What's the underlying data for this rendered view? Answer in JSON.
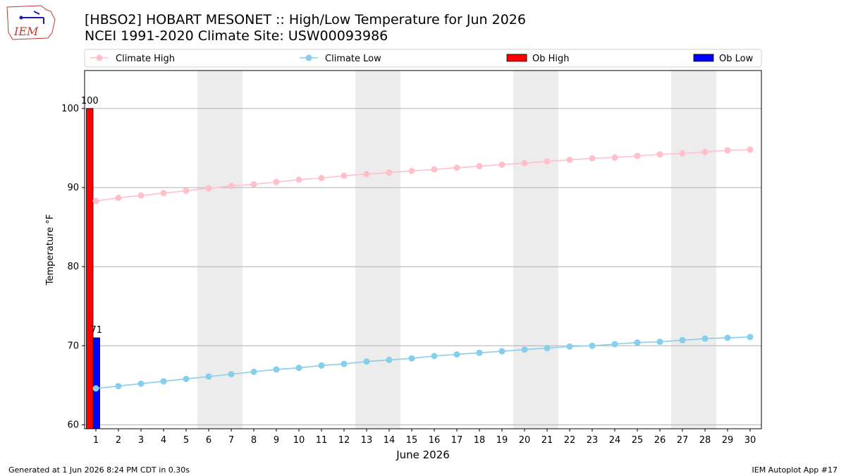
{
  "header": {
    "logo_text": "IEM",
    "title_line1": "[HBSO2] HOBART MESONET :: High/Low Temperature for Jun 2026",
    "title_line2": "NCEI 1991-2020 Climate Site: USW00093986"
  },
  "footer": {
    "left": "Generated at 1 Jun 2026 8:24 PM CDT in 0.30s",
    "right": "IEM Autoplot App #17"
  },
  "colors": {
    "climate_high": "#ffc0cb",
    "climate_low": "#87ceeb",
    "ob_high": "#ff0000",
    "ob_low": "#0000ff",
    "weekend_band": "#ececec",
    "grid": "#b0b0b0"
  },
  "chart_data": {
    "type": "line",
    "title": "[HBSO2] HOBART MESONET :: High/Low Temperature for Jun 2026",
    "subtitle": "NCEI 1991-2020 Climate Site: USW00093986",
    "xlabel": "June 2026",
    "ylabel": "Temperature °F",
    "xlim": [
      0.5,
      30.5
    ],
    "ylim": [
      59.5,
      104.8
    ],
    "x": [
      1,
      2,
      3,
      4,
      5,
      6,
      7,
      8,
      9,
      10,
      11,
      12,
      13,
      14,
      15,
      16,
      17,
      18,
      19,
      20,
      21,
      22,
      23,
      24,
      25,
      26,
      27,
      28,
      29,
      30
    ],
    "yticks": [
      60,
      70,
      80,
      90,
      100
    ],
    "grid": "horizontal",
    "legend_position": "top",
    "weekend_bands": [
      [
        6,
        7
      ],
      [
        13,
        14
      ],
      [
        20,
        21
      ],
      [
        27,
        28
      ]
    ],
    "series": [
      {
        "name": "Climate High",
        "kind": "line",
        "values": [
          88.3,
          88.7,
          89.0,
          89.3,
          89.6,
          89.9,
          90.2,
          90.4,
          90.7,
          91.0,
          91.2,
          91.5,
          91.7,
          91.9,
          92.1,
          92.3,
          92.5,
          92.7,
          92.9,
          93.1,
          93.3,
          93.5,
          93.7,
          93.8,
          94.0,
          94.2,
          94.3,
          94.5,
          94.7,
          94.8
        ]
      },
      {
        "name": "Climate Low",
        "kind": "line",
        "values": [
          64.6,
          64.9,
          65.2,
          65.5,
          65.8,
          66.1,
          66.4,
          66.7,
          67.0,
          67.2,
          67.5,
          67.7,
          68.0,
          68.2,
          68.4,
          68.7,
          68.9,
          69.1,
          69.3,
          69.5,
          69.7,
          69.9,
          70.0,
          70.2,
          70.4,
          70.5,
          70.7,
          70.9,
          71.0,
          71.1
        ]
      },
      {
        "name": "Ob High",
        "kind": "bar",
        "x": [
          1
        ],
        "values": [
          100
        ],
        "labels": [
          "100"
        ]
      },
      {
        "name": "Ob Low",
        "kind": "bar",
        "x": [
          1
        ],
        "values": [
          71
        ],
        "labels": [
          "71"
        ]
      }
    ]
  }
}
